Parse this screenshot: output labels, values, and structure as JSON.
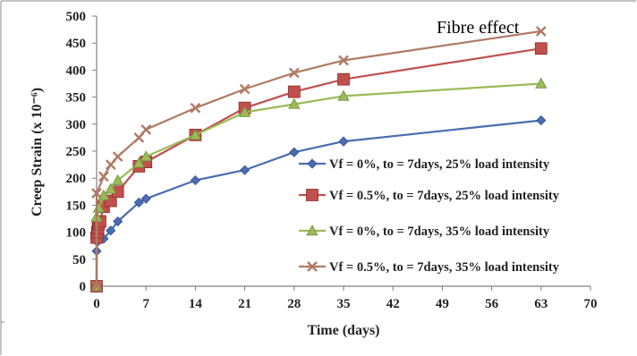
{
  "chart_data": {
    "type": "line",
    "title": "",
    "annotation": "Fibre effect",
    "xlabel": "Time (days)",
    "ylabel": "Creep Strain (x 10⁻⁶)",
    "xlim": [
      0,
      70
    ],
    "ylim": [
      0,
      500
    ],
    "xticks": [
      0,
      7,
      14,
      21,
      28,
      35,
      42,
      49,
      56,
      63,
      70
    ],
    "yticks": [
      0,
      50,
      100,
      150,
      200,
      250,
      300,
      350,
      400,
      450,
      500
    ],
    "grid": false,
    "legend_position": "right",
    "series": [
      {
        "name": "Vf = 0%, to = 7days, 25% load intensity",
        "marker": "diamond",
        "color": "#4a6db0",
        "points": [
          [
            0,
            0
          ],
          [
            0,
            65
          ],
          [
            0.1,
            82
          ],
          [
            0.3,
            85
          ],
          [
            1,
            88
          ],
          [
            2,
            103
          ],
          [
            3,
            120
          ],
          [
            6,
            155
          ],
          [
            7,
            162
          ],
          [
            14,
            196
          ],
          [
            21,
            215
          ],
          [
            28,
            248
          ],
          [
            35,
            268
          ],
          [
            63,
            307
          ]
        ]
      },
      {
        "name": "Vf = 0.5%, to = 7days, 25% load intensity",
        "marker": "square",
        "color": "#c0504d",
        "points": [
          [
            0,
            0
          ],
          [
            0,
            90
          ],
          [
            0.1,
            100
          ],
          [
            0.2,
            108
          ],
          [
            0.3,
            115
          ],
          [
            0.5,
            120
          ],
          [
            1,
            147
          ],
          [
            2,
            158
          ],
          [
            3,
            175
          ],
          [
            6,
            222
          ],
          [
            7,
            230
          ],
          [
            14,
            280
          ],
          [
            21,
            330
          ],
          [
            28,
            360
          ],
          [
            35,
            383
          ],
          [
            63,
            440
          ]
        ]
      },
      {
        "name": "Vf = 0%, to = 7days, 35% load intensity",
        "marker": "triangle",
        "color": "#9bbb59",
        "points": [
          [
            0,
            0
          ],
          [
            0,
            128
          ],
          [
            0.3,
            145
          ],
          [
            1,
            168
          ],
          [
            2,
            180
          ],
          [
            3,
            196
          ],
          [
            6,
            228
          ],
          [
            7,
            240
          ],
          [
            14,
            280
          ],
          [
            21,
            322
          ],
          [
            28,
            337
          ],
          [
            35,
            352
          ],
          [
            63,
            375
          ]
        ]
      },
      {
        "name": "Vf = 0.5%, to = 7days, 35% load intensity",
        "marker": "x",
        "color": "#b07a63",
        "points": [
          [
            0,
            0
          ],
          [
            0,
            172
          ],
          [
            1,
            203
          ],
          [
            2,
            225
          ],
          [
            3,
            240
          ],
          [
            6,
            275
          ],
          [
            7,
            290
          ],
          [
            14,
            330
          ],
          [
            21,
            365
          ],
          [
            28,
            395
          ],
          [
            35,
            418
          ],
          [
            63,
            472
          ]
        ]
      }
    ]
  }
}
